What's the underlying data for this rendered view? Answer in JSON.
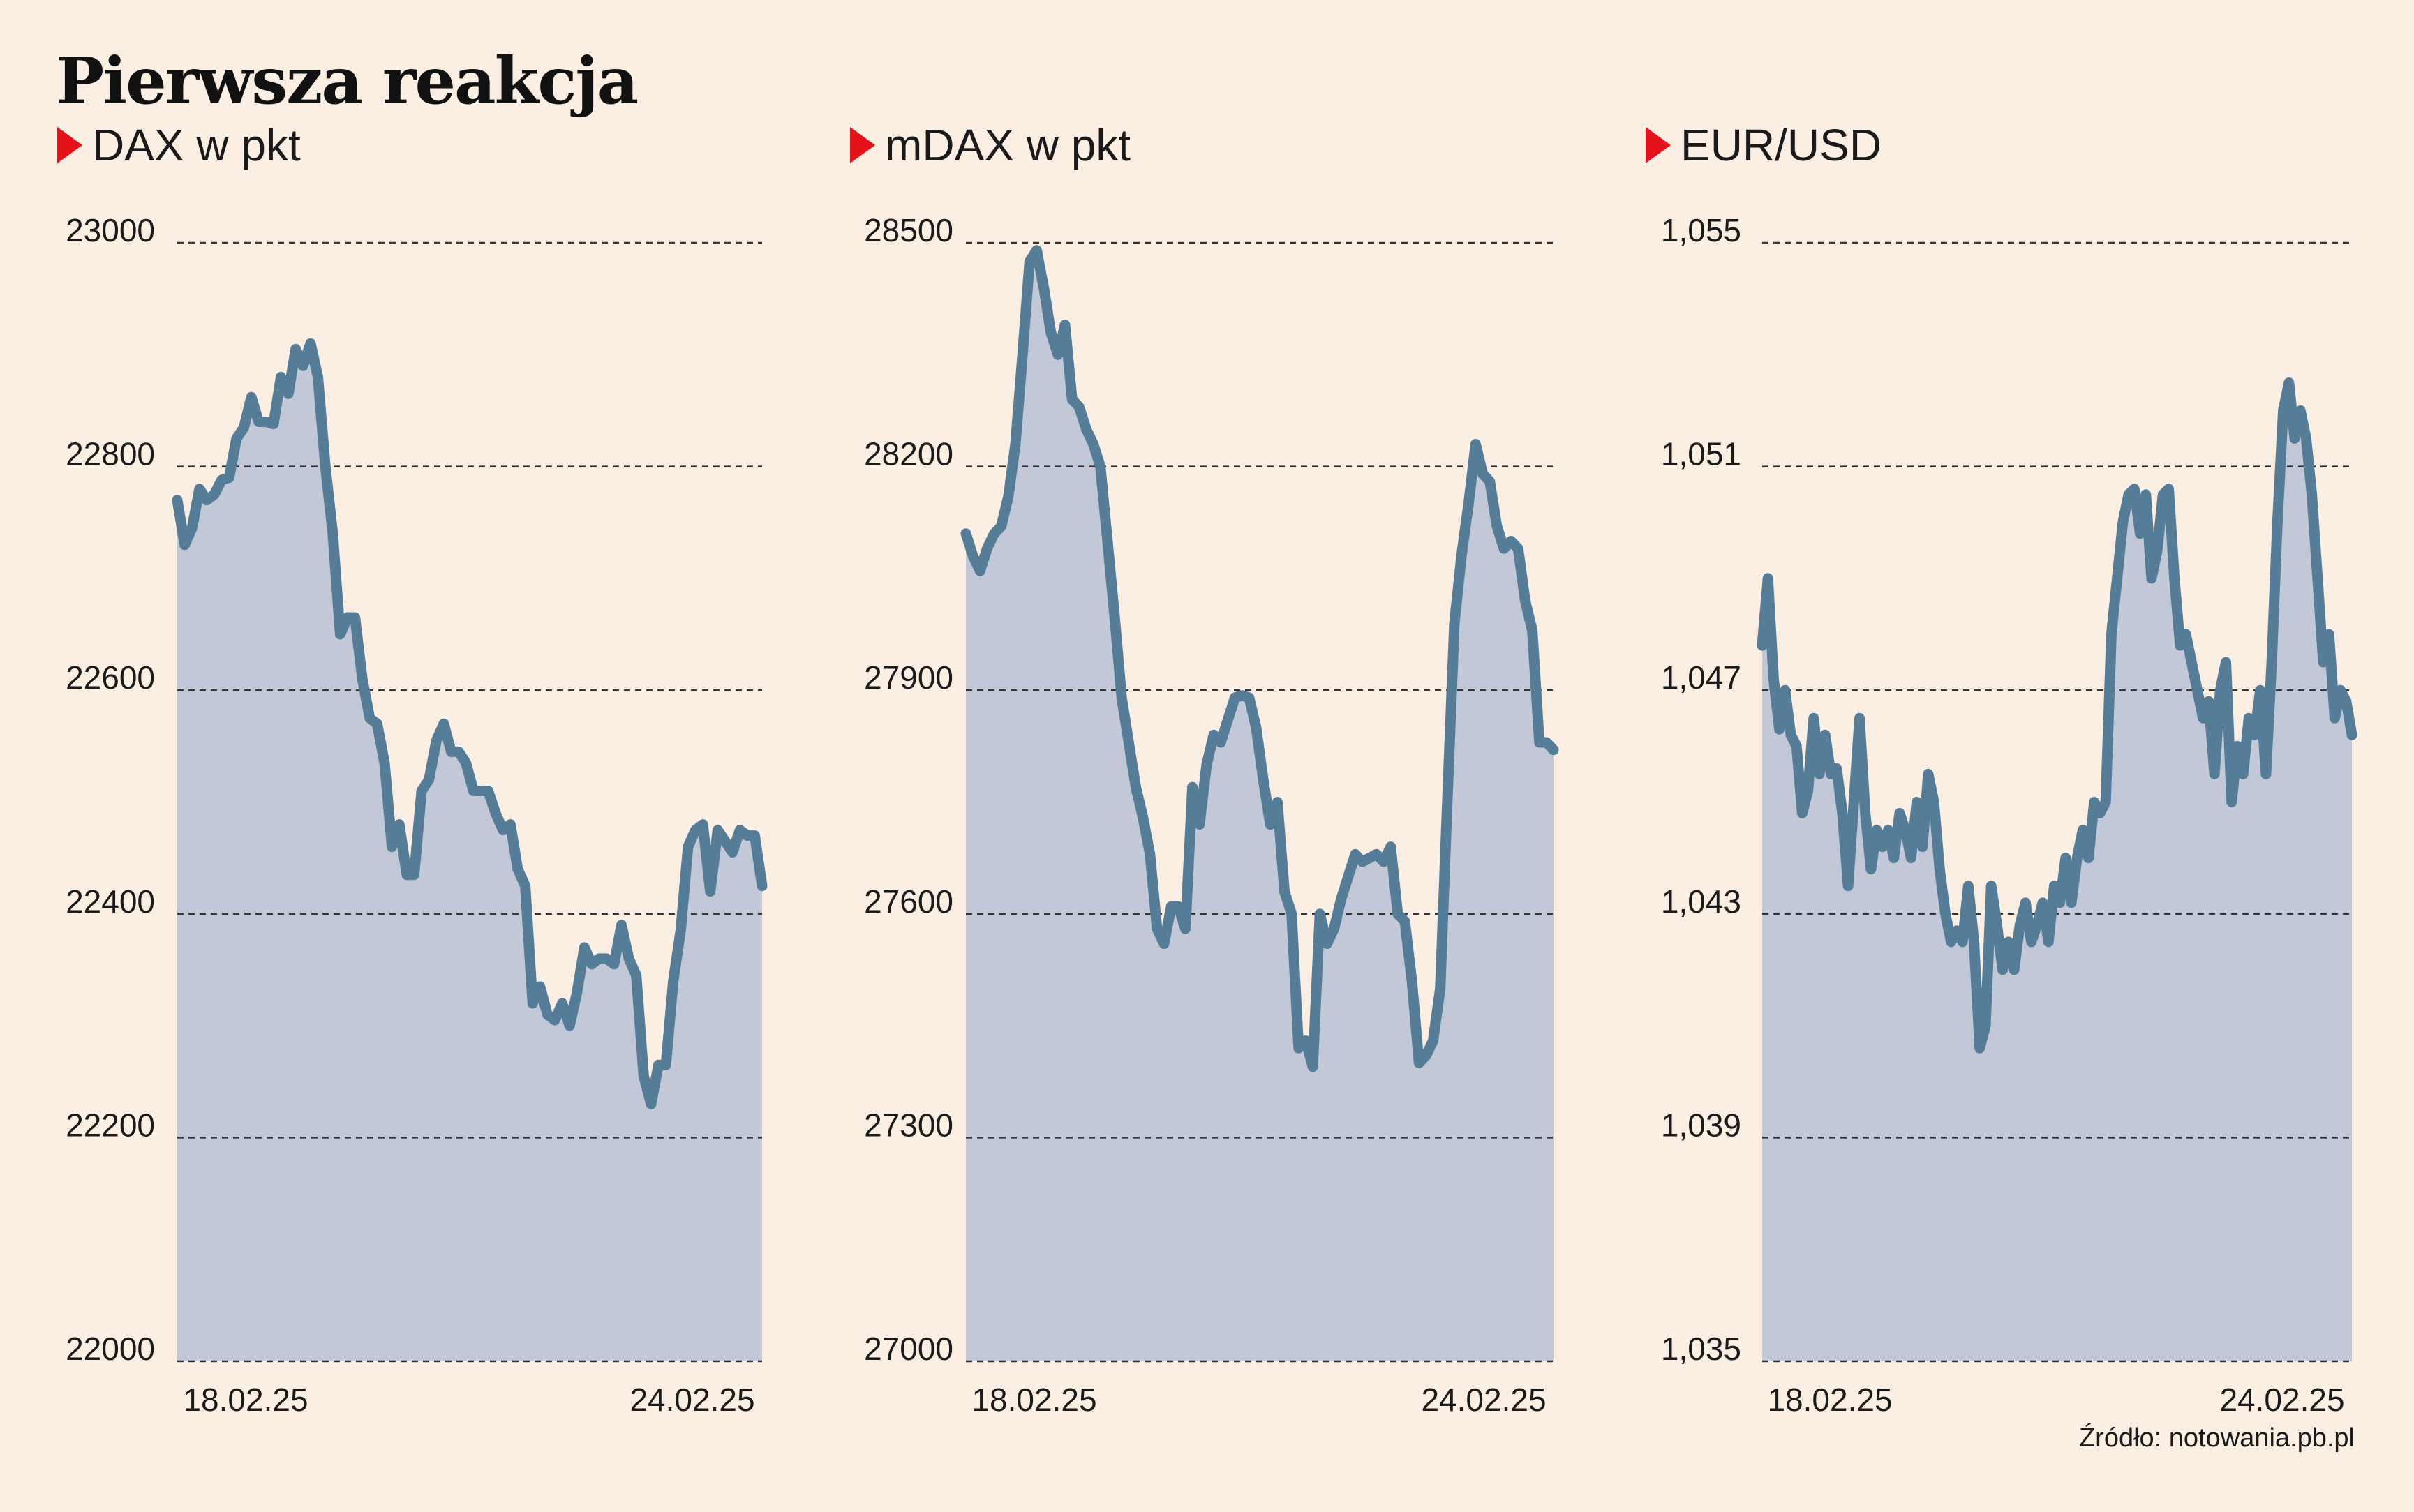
{
  "title": "Pierwsza reakcja",
  "source": "Źródło: notowania.pb.pl",
  "colors": {
    "line": "#557d98",
    "area": "#c2c8d8",
    "marker": "#e3121b",
    "background": "#fbeee2",
    "grid": "#333333"
  },
  "chart_data": [
    {
      "type": "area",
      "title": "DAX w pkt",
      "ylim": [
        22000,
        23000
      ],
      "yticks": [
        22000,
        22200,
        22400,
        22600,
        22800,
        23000
      ],
      "ytick_labels": [
        "22000",
        "22200",
        "22400",
        "22600",
        "22800",
        "23000"
      ],
      "xtick_labels": [
        "18.02.25",
        "24.02.25"
      ],
      "grid": true,
      "values": [
        22770,
        22730,
        22745,
        22780,
        22770,
        22775,
        22788,
        22790,
        22825,
        22835,
        22862,
        22840,
        22840,
        22838,
        22880,
        22865,
        22905,
        22890,
        22910,
        22880,
        22800,
        22740,
        22650,
        22665,
        22665,
        22610,
        22575,
        22570,
        22535,
        22460,
        22480,
        22435,
        22435,
        22510,
        22520,
        22555,
        22570,
        22545,
        22545,
        22535,
        22510,
        22510,
        22510,
        22490,
        22475,
        22480,
        22440,
        22425,
        22320,
        22335,
        22310,
        22305,
        22320,
        22300,
        22330,
        22370,
        22355,
        22360,
        22360,
        22355,
        22390,
        22360,
        22345,
        22255,
        22230,
        22265,
        22265,
        22340,
        22385,
        22460,
        22475,
        22480,
        22420,
        22475,
        22465,
        22455,
        22475,
        22470,
        22470,
        22425
      ]
    },
    {
      "type": "area",
      "title": "mDAX w pkt",
      "ylim": [
        27000,
        28500
      ],
      "yticks": [
        27000,
        27300,
        27600,
        27900,
        28200,
        28500
      ],
      "ytick_labels": [
        "27000",
        "27300",
        "27600",
        "27900",
        "28200",
        "28500"
      ],
      "xtick_labels": [
        "18.02.25",
        "24.02.25"
      ],
      "grid": true,
      "values": [
        28110,
        28080,
        28060,
        28090,
        28110,
        28120,
        28160,
        28230,
        28350,
        28475,
        28490,
        28440,
        28380,
        28350,
        28390,
        28290,
        28280,
        28250,
        28230,
        28200,
        28100,
        28000,
        27890,
        27830,
        27770,
        27730,
        27680,
        27580,
        27560,
        27610,
        27610,
        27580,
        27770,
        27720,
        27800,
        27840,
        27830,
        27860,
        27890,
        27893,
        27890,
        27850,
        27780,
        27720,
        27750,
        27630,
        27600,
        27420,
        27430,
        27395,
        27600,
        27560,
        27580,
        27620,
        27650,
        27680,
        27670,
        27675,
        27680,
        27670,
        27690,
        27600,
        27590,
        27510,
        27400,
        27410,
        27430,
        27500,
        27750,
        27990,
        28080,
        28150,
        28230,
        28190,
        28180,
        28120,
        28090,
        28100,
        28090,
        28020,
        27980,
        27830,
        27830,
        27820
      ]
    },
    {
      "type": "area",
      "title": "EUR/USD",
      "ylim": [
        1.035,
        1.055
      ],
      "yticks": [
        1.035,
        1.039,
        1.043,
        1.047,
        1.051,
        1.055
      ],
      "ytick_labels": [
        "1,035",
        "1,039",
        "1,043",
        "1,047",
        "1,051",
        "1,055"
      ],
      "xtick_labels": [
        "18.02.25",
        "24.02.25"
      ],
      "grid": true,
      "values": [
        1.0478,
        1.049,
        1.0472,
        1.0463,
        1.047,
        1.0462,
        1.046,
        1.0448,
        1.0452,
        1.0465,
        1.0455,
        1.0462,
        1.0455,
        1.0456,
        1.0448,
        1.0435,
        1.045,
        1.0465,
        1.0448,
        1.0438,
        1.0445,
        1.0442,
        1.0445,
        1.044,
        1.0448,
        1.0445,
        1.044,
        1.045,
        1.0442,
        1.0455,
        1.045,
        1.0438,
        1.043,
        1.0425,
        1.0427,
        1.0425,
        1.0435,
        1.0425,
        1.0406,
        1.041,
        1.0435,
        1.0428,
        1.042,
        1.0425,
        1.042,
        1.0428,
        1.0432,
        1.0425,
        1.0428,
        1.0432,
        1.0425,
        1.0435,
        1.0432,
        1.044,
        1.0432,
        1.044,
        1.0445,
        1.044,
        1.045,
        1.0448,
        1.045,
        1.048,
        1.049,
        1.05,
        1.0505,
        1.0506,
        1.0498,
        1.0505,
        1.049,
        1.0495,
        1.0505,
        1.0506,
        1.049,
        1.0478,
        1.048,
        1.0475,
        1.047,
        1.0465,
        1.0468,
        1.0455,
        1.047,
        1.0475,
        1.045,
        1.046,
        1.0455,
        1.0465,
        1.0462,
        1.047,
        1.0455,
        1.0475,
        1.05,
        1.052,
        1.0525,
        1.0515,
        1.052,
        1.0515,
        1.0505,
        1.049,
        1.0475,
        1.048,
        1.0465,
        1.047,
        1.0468,
        1.0462
      ]
    }
  ]
}
